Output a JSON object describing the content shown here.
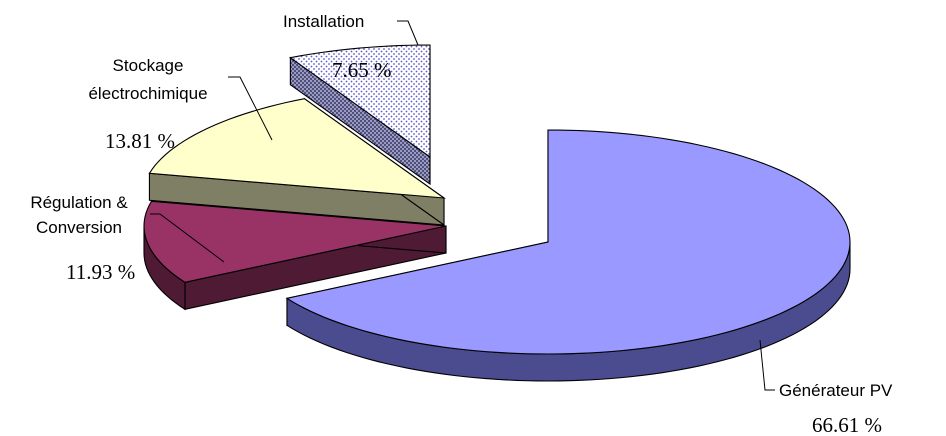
{
  "chart_data": {
    "type": "pie",
    "style": "3d-exploded",
    "slices": [
      {
        "label": "Générateur PV",
        "value": 66.61,
        "value_text": "66.61 %",
        "color": "#9999ff",
        "side_color": "#4b4b8f"
      },
      {
        "label": "Régulation & Conversion",
        "label_lines": [
          "Régulation &",
          "Conversion"
        ],
        "value": 11.93,
        "value_text": "11.93 %",
        "color": "#993366",
        "side_color": "#4f1a33"
      },
      {
        "label": "Stockage électrochimique",
        "label_lines": [
          "Stockage",
          "électrochimique"
        ],
        "value": 13.81,
        "value_text": "13.81 %",
        "color": "#ffffcc",
        "side_color": "#7f7f66"
      },
      {
        "label": "Installation",
        "value": 7.65,
        "value_text": "7.65 %",
        "color": "#e8e8ff",
        "side_color": "#7a7aa8",
        "pattern": "dotted"
      }
    ]
  }
}
